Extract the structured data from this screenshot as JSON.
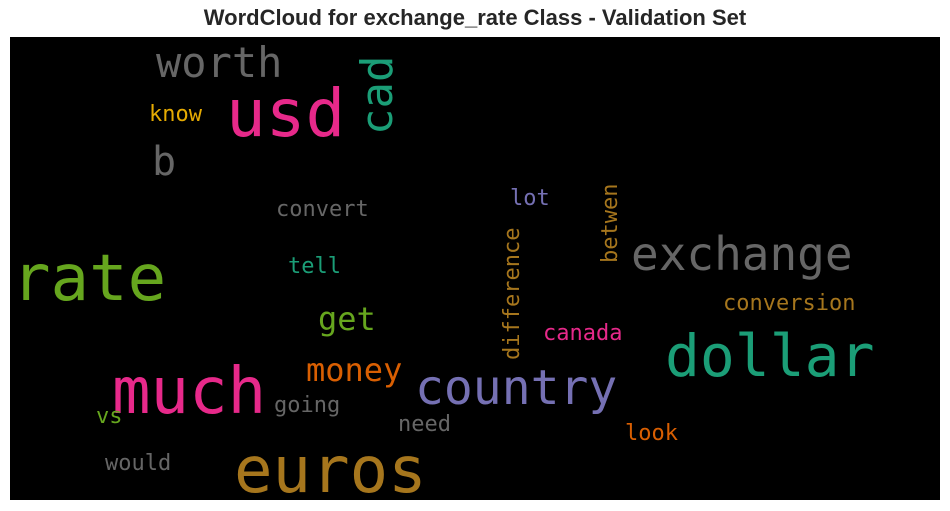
{
  "title": "WordCloud for exchange_rate Class - Validation Set",
  "colors": {
    "pink": "#e7298a",
    "teal": "#1b9e77",
    "green": "#66a61e",
    "gray": "#666666",
    "purple": "#7570b3",
    "orange": "#d95f02",
    "brown": "#a6761d",
    "gold": "#e6ab02"
  },
  "words": [
    {
      "text": "usd",
      "color": "#e7298a",
      "orientation": "horizontal"
    },
    {
      "text": "worth",
      "color": "#666666",
      "orientation": "horizontal"
    },
    {
      "text": "cad",
      "color": "#1b9e77",
      "orientation": "vertical"
    },
    {
      "text": "know",
      "color": "#e6ab02",
      "orientation": "horizontal"
    },
    {
      "text": "b",
      "color": "#666666",
      "orientation": "horizontal"
    },
    {
      "text": "convert",
      "color": "#666666",
      "orientation": "horizontal"
    },
    {
      "text": "lot",
      "color": "#7570b3",
      "orientation": "horizontal"
    },
    {
      "text": "betwen",
      "color": "#a6761d",
      "orientation": "vertical"
    },
    {
      "text": "rate",
      "color": "#66a61e",
      "orientation": "horizontal"
    },
    {
      "text": "tell",
      "color": "#1b9e77",
      "orientation": "horizontal"
    },
    {
      "text": "difference",
      "color": "#a6761d",
      "orientation": "vertical"
    },
    {
      "text": "exchange",
      "color": "#666666",
      "orientation": "horizontal"
    },
    {
      "text": "get",
      "color": "#66a61e",
      "orientation": "horizontal"
    },
    {
      "text": "conversion",
      "color": "#a6761d",
      "orientation": "horizontal"
    },
    {
      "text": "canada",
      "color": "#e7298a",
      "orientation": "horizontal"
    },
    {
      "text": "dollar",
      "color": "#1b9e77",
      "orientation": "horizontal"
    },
    {
      "text": "money",
      "color": "#d95f02",
      "orientation": "horizontal"
    },
    {
      "text": "much",
      "color": "#e7298a",
      "orientation": "horizontal"
    },
    {
      "text": "country",
      "color": "#7570b3",
      "orientation": "horizontal"
    },
    {
      "text": "going",
      "color": "#666666",
      "orientation": "horizontal"
    },
    {
      "text": "vs",
      "color": "#66a61e",
      "orientation": "horizontal"
    },
    {
      "text": "need",
      "color": "#666666",
      "orientation": "horizontal"
    },
    {
      "text": "look",
      "color": "#d95f02",
      "orientation": "horizontal"
    },
    {
      "text": "would",
      "color": "#666666",
      "orientation": "horizontal"
    },
    {
      "text": "euros",
      "color": "#a6761d",
      "orientation": "horizontal"
    }
  ]
}
